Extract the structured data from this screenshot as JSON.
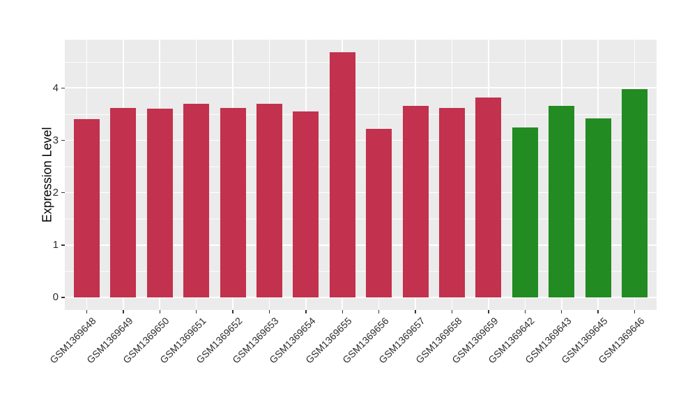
{
  "chart_data": {
    "type": "bar",
    "title": "",
    "xlabel": "",
    "ylabel": "Expression Level",
    "categories": [
      "GSM1369648",
      "GSM1369649",
      "GSM1369650",
      "GSM1369651",
      "GSM1369652",
      "GSM1369653",
      "GSM1369654",
      "GSM1369655",
      "GSM1369656",
      "GSM1369657",
      "GSM1369658",
      "GSM1369659",
      "GSM1369642",
      "GSM1369643",
      "GSM1369645",
      "GSM1369646"
    ],
    "values": [
      3.4,
      3.62,
      3.6,
      3.7,
      3.62,
      3.69,
      3.55,
      4.68,
      3.22,
      3.66,
      3.62,
      3.82,
      3.24,
      3.65,
      3.42,
      3.98
    ],
    "groups": [
      "red",
      "red",
      "red",
      "red",
      "red",
      "red",
      "red",
      "red",
      "red",
      "red",
      "red",
      "red",
      "green",
      "green",
      "green",
      "green"
    ],
    "group_colors": {
      "red": "#C2314D",
      "green": "#228B22"
    },
    "y_ticks": [
      "0",
      "1",
      "2",
      "3",
      "4"
    ],
    "y_minor_ticks": [
      0.5,
      1.5,
      2.5,
      3.5,
      4.5
    ],
    "ylim": [
      -0.24,
      4.92
    ],
    "grid": "on",
    "legend": "none",
    "panel_background": "#EBEBEB",
    "grid_color": "#FFFFFF",
    "tick_mark_color": "#333333",
    "tick_label_color": "#2B2B2B",
    "axis_title_color": "#000000",
    "outer_background": "#FFFFFF"
  }
}
